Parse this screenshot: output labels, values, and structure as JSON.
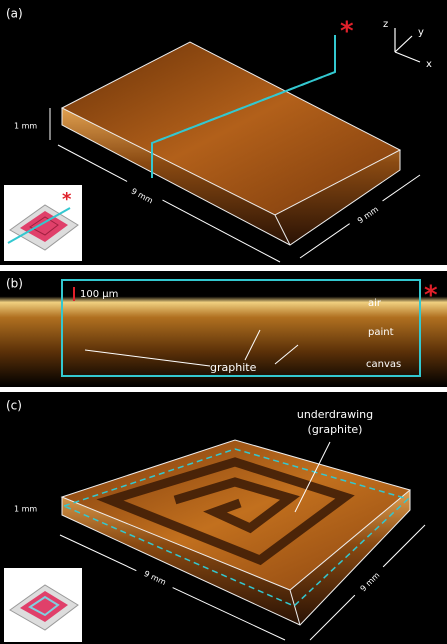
{
  "panels": [
    {
      "label": "(a)",
      "marker": "*",
      "axes": [
        "z",
        "y",
        "x"
      ],
      "thickness": "1 mm",
      "width": "9 mm",
      "depth": "9 mm"
    },
    {
      "label": "(b)",
      "scale_bar": "100 µm",
      "layers": [
        "air",
        "paint",
        "canvas"
      ],
      "annotation": "graphite",
      "marker": "*"
    },
    {
      "label": "(c)",
      "thickness": "1 mm",
      "width": "9 mm",
      "depth": "9 mm",
      "annotation": [
        "underdrawing",
        "(graphite)"
      ]
    }
  ]
}
